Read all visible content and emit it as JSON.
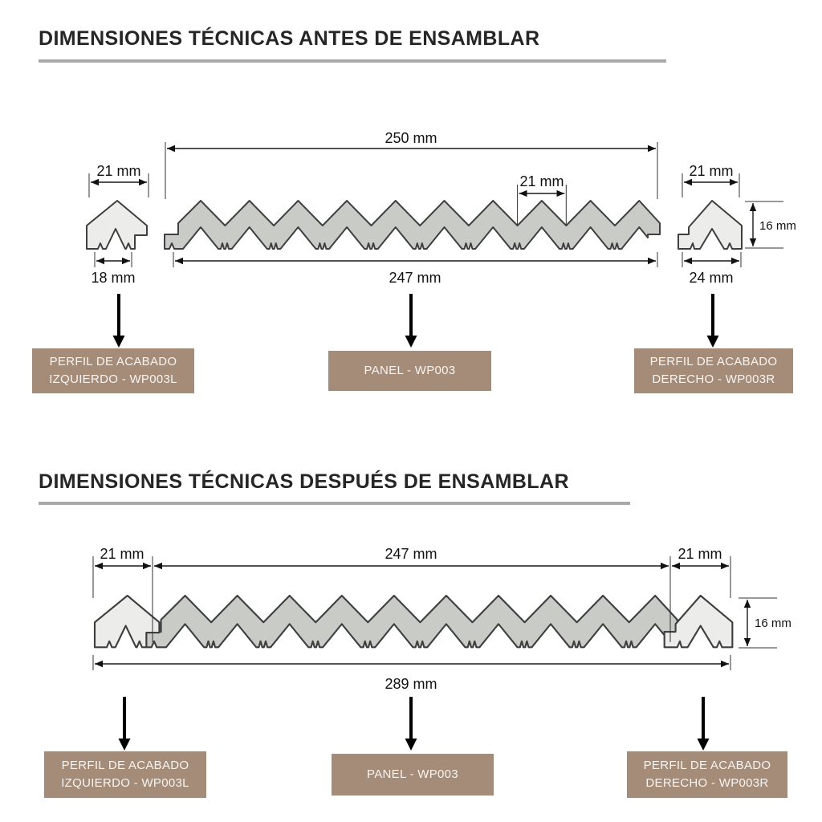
{
  "colors": {
    "panel_fill": "#c9cbc7",
    "profile_fill": "#ecedea",
    "outline": "#3f3f3f",
    "dimension": "#1a1a1a",
    "label_bg": "#a58c79",
    "label_text": "#f7f4f1",
    "title_text": "#262626",
    "title_underline": "#a9a9a9"
  },
  "section_before": {
    "title": "DIMENSIONES TÉCNICAS ANTES DE ENSAMBLAR",
    "dimensions": {
      "panel_width_top": "250 mm",
      "slat_pitch": "21 mm",
      "left_profile_top": "21 mm",
      "left_profile_bottom": "18 mm",
      "panel_width_bottom": "247 mm",
      "right_profile_top": "21 mm",
      "right_profile_bottom": "24 mm",
      "profile_height": "16 mm"
    },
    "labels": {
      "left": {
        "line1": "PERFIL DE ACABADO",
        "line2": "IZQUIERDO - WP003L"
      },
      "center": {
        "line1": "PANEL - WP003"
      },
      "right": {
        "line1": "PERFIL DE ACABADO",
        "line2": "DERECHO - WP003R"
      }
    }
  },
  "section_after": {
    "title": "DIMENSIONES TÉCNICAS DESPUÉS DE ENSAMBLAR",
    "dimensions": {
      "left_profile": "21 mm",
      "panel": "247 mm",
      "right_profile": "21 mm",
      "total_width": "289 mm",
      "profile_height": "16 mm"
    },
    "labels": {
      "left": {
        "line1": "PERFIL DE ACABADO",
        "line2": "IZQUIERDO - WP003L"
      },
      "center": {
        "line1": "PANEL - WP003"
      },
      "right": {
        "line1": "PERFIL DE ACABADO",
        "line2": "DERECHO - WP003R"
      }
    }
  }
}
